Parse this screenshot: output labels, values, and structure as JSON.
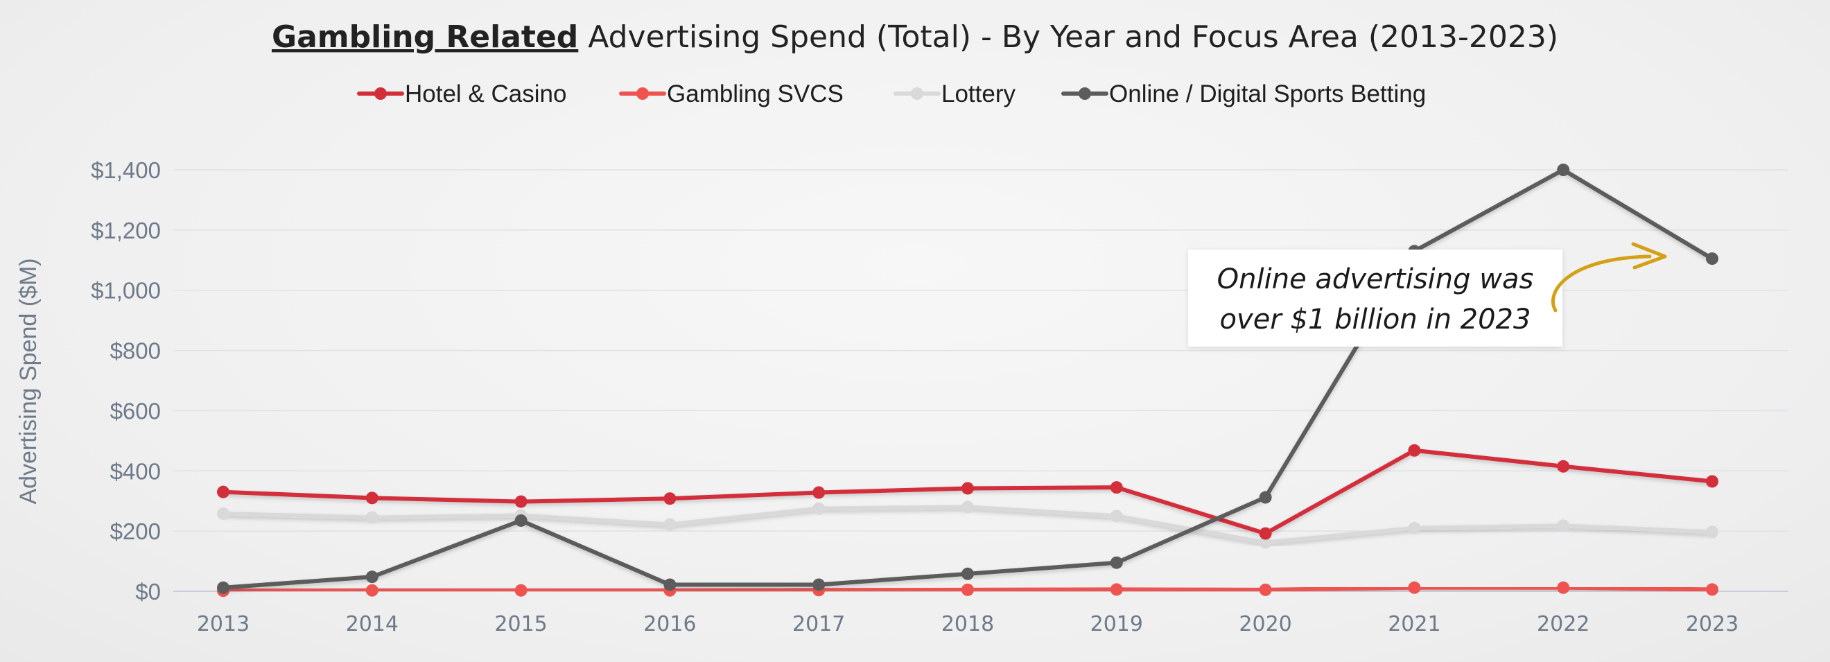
{
  "title": {
    "bold_part": "Gambling Related",
    "rest": " Advertising Spend (Total) - By Year and Focus Area (2013-2023)"
  },
  "chart_data": {
    "type": "line",
    "x": [
      "2013",
      "2014",
      "2015",
      "2016",
      "2017",
      "2018",
      "2019",
      "2020",
      "2021",
      "2022",
      "2023"
    ],
    "ylabel": "Advertising Spend ($M)",
    "ylim": [
      0,
      1400
    ],
    "yticks": [
      "$0",
      "$200",
      "$400",
      "$600",
      "$800",
      "$1,000",
      "$1,200",
      "$1,400"
    ],
    "grid": "horizontal",
    "legend_position": "top",
    "series": [
      {
        "name": "Hotel & Casino",
        "color": "#d32f3a",
        "values": [
          330,
          310,
          298,
          308,
          328,
          342,
          345,
          192,
          468,
          415,
          365
        ]
      },
      {
        "name": "Gambling SVCS",
        "color": "#ef5350",
        "values": [
          2,
          3,
          3,
          3,
          4,
          5,
          6,
          5,
          12,
          12,
          6
        ]
      },
      {
        "name": "Lottery",
        "color": "#d9d9d9",
        "values": [
          258,
          245,
          252,
          222,
          275,
          280,
          250,
          162,
          210,
          218,
          197
        ]
      },
      {
        "name": "Online / Digital Sports Betting",
        "color": "#5c5c5c",
        "values": [
          12,
          48,
          235,
          22,
          22,
          58,
          95,
          312,
          1130,
          1400,
          1105
        ]
      }
    ],
    "annotation": {
      "lines": [
        "Online advertising was",
        "over $1 billion in 2023"
      ],
      "arrow_color": "#d4a017"
    }
  }
}
